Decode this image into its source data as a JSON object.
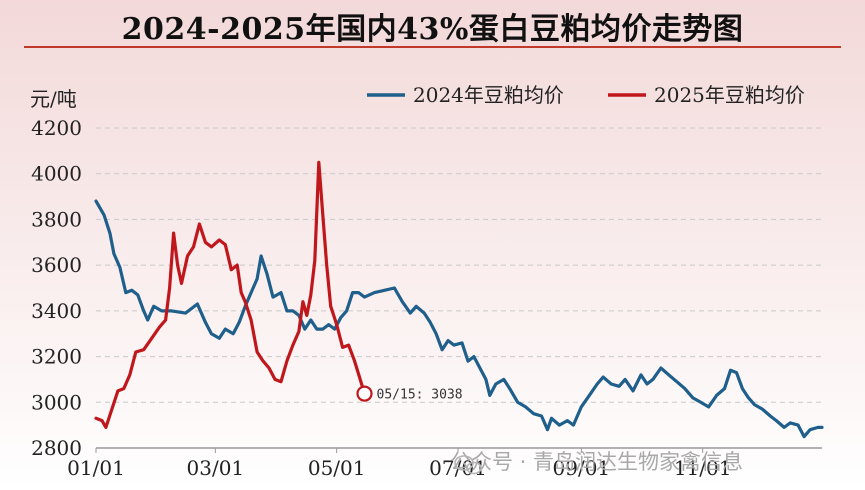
{
  "title": "2024-2025年国内43%蛋白豆粕均价走势图",
  "watermark": {
    "text": "公众号 · 青岛润达生物家禽信息"
  },
  "colors": {
    "series_2024": "#1f5f8b",
    "series_2025": "#c0171c",
    "grid": "#c9c9c9",
    "title_underline": "#c0392b"
  },
  "chart_data": {
    "type": "line",
    "ylabel": "元/吨",
    "ylim": [
      2800,
      4200
    ],
    "yticks": [
      2800,
      3000,
      3200,
      3400,
      3600,
      3800,
      4000,
      4200
    ],
    "x_domain": [
      "01/01",
      "12/31"
    ],
    "xticks": [
      "01/01",
      "03/01",
      "05/01",
      "07/01",
      "09/01",
      "11/01"
    ],
    "grid": "horizontal-dashed",
    "legend_position": "top-right",
    "series": [
      {
        "name": "2024年豆粕均价",
        "color": "#1f5f8b",
        "points": [
          [
            "01/01",
            3880
          ],
          [
            "01/05",
            3820
          ],
          [
            "01/08",
            3740
          ],
          [
            "01/10",
            3650
          ],
          [
            "01/13",
            3590
          ],
          [
            "01/16",
            3480
          ],
          [
            "01/19",
            3490
          ],
          [
            "01/22",
            3470
          ],
          [
            "01/25",
            3400
          ],
          [
            "01/27",
            3360
          ],
          [
            "01/30",
            3420
          ],
          [
            "02/03",
            3400
          ],
          [
            "02/08",
            3400
          ],
          [
            "02/15",
            3390
          ],
          [
            "02/21",
            3430
          ],
          [
            "02/25",
            3350
          ],
          [
            "02/28",
            3300
          ],
          [
            "03/03",
            3280
          ],
          [
            "03/06",
            3320
          ],
          [
            "03/10",
            3300
          ],
          [
            "03/13",
            3350
          ],
          [
            "03/16",
            3420
          ],
          [
            "03/19",
            3480
          ],
          [
            "03/22",
            3540
          ],
          [
            "03/24",
            3640
          ],
          [
            "03/27",
            3560
          ],
          [
            "03/30",
            3460
          ],
          [
            "04/03",
            3480
          ],
          [
            "04/06",
            3400
          ],
          [
            "04/09",
            3400
          ],
          [
            "04/12",
            3380
          ],
          [
            "04/15",
            3320
          ],
          [
            "04/18",
            3360
          ],
          [
            "04/21",
            3320
          ],
          [
            "04/24",
            3320
          ],
          [
            "04/27",
            3340
          ],
          [
            "04/30",
            3320
          ],
          [
            "05/03",
            3370
          ],
          [
            "05/06",
            3400
          ],
          [
            "05/09",
            3480
          ],
          [
            "05/12",
            3480
          ],
          [
            "05/15",
            3460
          ],
          [
            "05/20",
            3480
          ],
          [
            "05/25",
            3490
          ],
          [
            "05/30",
            3500
          ],
          [
            "06/03",
            3440
          ],
          [
            "06/07",
            3390
          ],
          [
            "06/10",
            3420
          ],
          [
            "06/14",
            3390
          ],
          [
            "06/17",
            3350
          ],
          [
            "06/20",
            3300
          ],
          [
            "06/23",
            3230
          ],
          [
            "06/26",
            3270
          ],
          [
            "06/29",
            3250
          ],
          [
            "07/03",
            3260
          ],
          [
            "07/06",
            3180
          ],
          [
            "07/09",
            3200
          ],
          [
            "07/12",
            3150
          ],
          [
            "07/15",
            3100
          ],
          [
            "07/17",
            3030
          ],
          [
            "07/20",
            3080
          ],
          [
            "07/24",
            3100
          ],
          [
            "07/27",
            3060
          ],
          [
            "07/31",
            3000
          ],
          [
            "08/04",
            2980
          ],
          [
            "08/08",
            2950
          ],
          [
            "08/12",
            2940
          ],
          [
            "08/15",
            2880
          ],
          [
            "08/17",
            2930
          ],
          [
            "08/21",
            2900
          ],
          [
            "08/25",
            2920
          ],
          [
            "08/28",
            2900
          ],
          [
            "09/01",
            2980
          ],
          [
            "09/05",
            3030
          ],
          [
            "09/09",
            3080
          ],
          [
            "09/12",
            3110
          ],
          [
            "09/16",
            3080
          ],
          [
            "09/20",
            3070
          ],
          [
            "09/23",
            3100
          ],
          [
            "09/27",
            3050
          ],
          [
            "10/01",
            3120
          ],
          [
            "10/04",
            3080
          ],
          [
            "10/07",
            3100
          ],
          [
            "10/11",
            3150
          ],
          [
            "10/15",
            3120
          ],
          [
            "10/19",
            3090
          ],
          [
            "10/23",
            3060
          ],
          [
            "10/27",
            3020
          ],
          [
            "10/31",
            3000
          ],
          [
            "11/04",
            2980
          ],
          [
            "11/08",
            3030
          ],
          [
            "11/12",
            3060
          ],
          [
            "11/15",
            3140
          ],
          [
            "11/18",
            3130
          ],
          [
            "11/21",
            3060
          ],
          [
            "11/24",
            3020
          ],
          [
            "11/27",
            2990
          ],
          [
            "12/01",
            2970
          ],
          [
            "12/05",
            2940
          ],
          [
            "12/08",
            2920
          ],
          [
            "12/12",
            2890
          ],
          [
            "12/15",
            2910
          ],
          [
            "12/19",
            2900
          ],
          [
            "12/22",
            2850
          ],
          [
            "12/25",
            2880
          ],
          [
            "12/29",
            2890
          ],
          [
            "12/31",
            2890
          ]
        ]
      },
      {
        "name": "2025年豆粕均价",
        "color": "#c0171c",
        "points": [
          [
            "01/01",
            2930
          ],
          [
            "01/04",
            2920
          ],
          [
            "01/06",
            2890
          ],
          [
            "01/09",
            2970
          ],
          [
            "01/12",
            3050
          ],
          [
            "01/15",
            3060
          ],
          [
            "01/18",
            3120
          ],
          [
            "01/21",
            3220
          ],
          [
            "01/25",
            3230
          ],
          [
            "01/29",
            3280
          ],
          [
            "02/02",
            3330
          ],
          [
            "02/05",
            3360
          ],
          [
            "02/07",
            3500
          ],
          [
            "02/09",
            3740
          ],
          [
            "02/11",
            3600
          ],
          [
            "02/13",
            3520
          ],
          [
            "02/16",
            3640
          ],
          [
            "02/19",
            3680
          ],
          [
            "02/22",
            3780
          ],
          [
            "02/25",
            3700
          ],
          [
            "02/28",
            3680
          ],
          [
            "03/03",
            3710
          ],
          [
            "03/06",
            3690
          ],
          [
            "03/09",
            3580
          ],
          [
            "03/12",
            3600
          ],
          [
            "03/14",
            3480
          ],
          [
            "03/16",
            3440
          ],
          [
            "03/19",
            3360
          ],
          [
            "03/22",
            3220
          ],
          [
            "03/25",
            3180
          ],
          [
            "03/28",
            3150
          ],
          [
            "03/31",
            3100
          ],
          [
            "04/03",
            3090
          ],
          [
            "04/06",
            3180
          ],
          [
            "04/09",
            3250
          ],
          [
            "04/12",
            3310
          ],
          [
            "04/14",
            3440
          ],
          [
            "04/16",
            3380
          ],
          [
            "04/18",
            3470
          ],
          [
            "04/20",
            3620
          ],
          [
            "04/22",
            4050
          ],
          [
            "04/24",
            3820
          ],
          [
            "04/26",
            3600
          ],
          [
            "04/28",
            3420
          ],
          [
            "05/01",
            3340
          ],
          [
            "05/04",
            3240
          ],
          [
            "05/07",
            3250
          ],
          [
            "05/10",
            3180
          ],
          [
            "05/15",
            3038
          ]
        ]
      }
    ],
    "annotations": [
      {
        "x": "05/15",
        "y": 3038,
        "label": "05/15: 3038",
        "marker": "hollow-circle",
        "series": "2025年豆粕均价"
      }
    ]
  }
}
